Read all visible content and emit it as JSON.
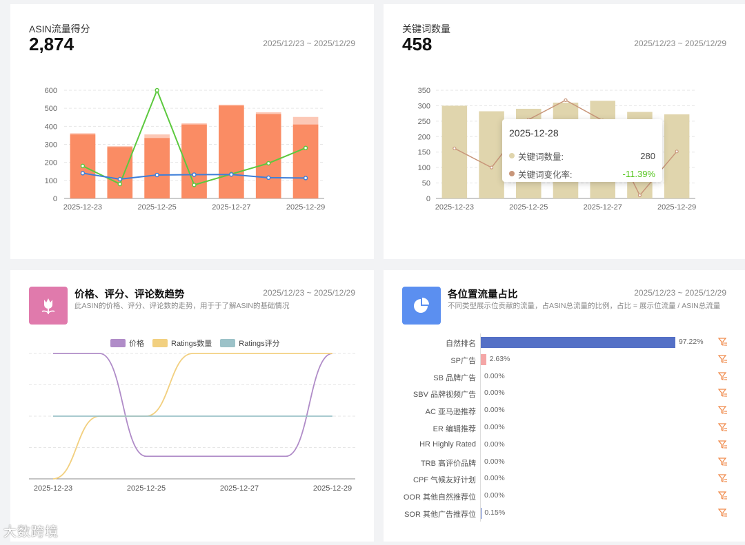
{
  "traffic_score": {
    "title": "ASIN流量得分",
    "value": "2,874",
    "date_range": "2025/12/23 ~ 2025/12/29"
  },
  "keyword_count": {
    "title": "关键词数量",
    "value": "458",
    "date_range": "2025/12/23 ~ 2025/12/29",
    "tooltip": {
      "date": "2025-12-28",
      "rows": [
        {
          "label": "关键词数量:",
          "value": "280",
          "color": "#e0d5ad"
        },
        {
          "label": "关键词变化率:",
          "value": "-11.39%",
          "color": "#c8967a"
        }
      ]
    }
  },
  "trend": {
    "title": "价格、评分、评论数趋势",
    "description": "此ASIN的价格、评分、评论数的走势，用于于了解ASIN的基础情况",
    "date_range": "2025/12/23 ~ 2025/12/29",
    "legend": [
      {
        "name": "价格",
        "color": "#b08cc8"
      },
      {
        "name": "Ratings数量",
        "color": "#f2d080"
      },
      {
        "name": "Ratings评分",
        "color": "#9cc2c8"
      }
    ]
  },
  "position_share": {
    "title": "各位置流量占比",
    "description": "不同类型展示位贡献的流量，占ASIN总流量的比例，占比 = 展示位流量 / ASIN总流量",
    "date_range": "2025/12/23 ~ 2025/12/29",
    "rows": [
      {
        "label": "自然排名",
        "pct": 97.22,
        "text": "97.22%",
        "color": "#5470c6"
      },
      {
        "label": "SP广告",
        "pct": 2.63,
        "text": "2.63%",
        "color": "#f4a6a6"
      },
      {
        "label": "SB 品牌广告",
        "pct": 0,
        "text": "0.00%",
        "color": "#5470c6"
      },
      {
        "label": "SBV 品牌视频广告",
        "pct": 0,
        "text": "0.00%",
        "color": "#5470c6"
      },
      {
        "label": "AC 亚马逊推荐",
        "pct": 0,
        "text": "0.00%",
        "color": "#5470c6"
      },
      {
        "label": "ER 编辑推荐",
        "pct": 0,
        "text": "0.00%",
        "color": "#5470c6"
      },
      {
        "label": "HR Highly Rated",
        "pct": 0,
        "text": "0.00%",
        "color": "#5470c6"
      },
      {
        "label": "TRB 高评价品牌",
        "pct": 0,
        "text": "0.00%",
        "color": "#5470c6"
      },
      {
        "label": "CPF 气候友好计划",
        "pct": 0,
        "text": "0.00%",
        "color": "#5470c6"
      },
      {
        "label": "OOR 其他自然推荐位",
        "pct": 0,
        "text": "0.00%",
        "color": "#5470c6"
      },
      {
        "label": "SOR 其他广告推荐位",
        "pct": 0.15,
        "text": "0.15%",
        "color": "#5470c6"
      }
    ]
  },
  "watermark": "大数跨境",
  "chart_data": [
    {
      "type": "bar",
      "categories": [
        "2025-12-23",
        "2025-12-24",
        "2025-12-25",
        "2025-12-26",
        "2025-12-27",
        "2025-12-28",
        "2025-12-29"
      ],
      "x_tick_labels": [
        "2025-12-23",
        "2025-12-25",
        "2025-12-27",
        "2025-12-29"
      ],
      "ylim": [
        0,
        600
      ],
      "y_ticks": [
        0,
        100,
        200,
        300,
        400,
        500,
        600
      ],
      "series": [
        {
          "type": "bar",
          "values": [
            355,
            285,
            335,
            410,
            515,
            468,
            410
          ],
          "color": "#fa8c64"
        },
        {
          "type": "bar-cap",
          "values": [
            362,
            290,
            355,
            417,
            520,
            478,
            452
          ],
          "color": "#fcc8b6"
        },
        {
          "type": "line",
          "values": [
            180,
            80,
            600,
            75,
            135,
            195,
            280
          ],
          "color": "#5cc93e"
        },
        {
          "type": "line",
          "values": [
            140,
            107,
            130,
            132,
            133,
            115,
            113
          ],
          "color": "#3e7fd9"
        }
      ]
    },
    {
      "type": "bar",
      "categories": [
        "2025-12-23",
        "2025-12-24",
        "2025-12-25",
        "2025-12-26",
        "2025-12-27",
        "2025-12-28",
        "2025-12-29"
      ],
      "x_tick_labels": [
        "2025-12-23",
        "2025-12-25",
        "2025-12-27",
        "2025-12-29"
      ],
      "ylim": [
        0,
        350
      ],
      "y_ticks": [
        0,
        50,
        100,
        150,
        200,
        250,
        300,
        350
      ],
      "series": [
        {
          "name": "关键词数量",
          "type": "bar",
          "values": [
            300,
            282,
            290,
            310,
            316,
            280,
            272
          ],
          "color": "#e0d5ad"
        },
        {
          "name": "关键词变化率",
          "type": "line",
          "values": [
            162,
            100,
            255,
            318,
            252,
            10,
            152
          ],
          "color": "#c8967a"
        }
      ]
    },
    {
      "type": "line",
      "categories": [
        "2025-12-23",
        "2025-12-24",
        "2025-12-25",
        "2025-12-26",
        "2025-12-27",
        "2025-12-28",
        "2025-12-29"
      ],
      "x_tick_labels": [
        "2025-12-23",
        "2025-12-25",
        "2025-12-27",
        "2025-12-29"
      ],
      "series": [
        {
          "name": "价格",
          "values": [
            1,
            1,
            0.18,
            0.18,
            0.18,
            0.18,
            1
          ],
          "color": "#b08cc8"
        },
        {
          "name": "Ratings数量",
          "values": [
            0,
            0.5,
            0.5,
            1,
            1,
            1,
            1
          ],
          "color": "#f2d080"
        },
        {
          "name": "Ratings评分",
          "values": [
            0.5,
            0.5,
            0.5,
            0.5,
            0.5,
            0.5,
            0.5
          ],
          "color": "#9cc2c8"
        }
      ]
    }
  ]
}
